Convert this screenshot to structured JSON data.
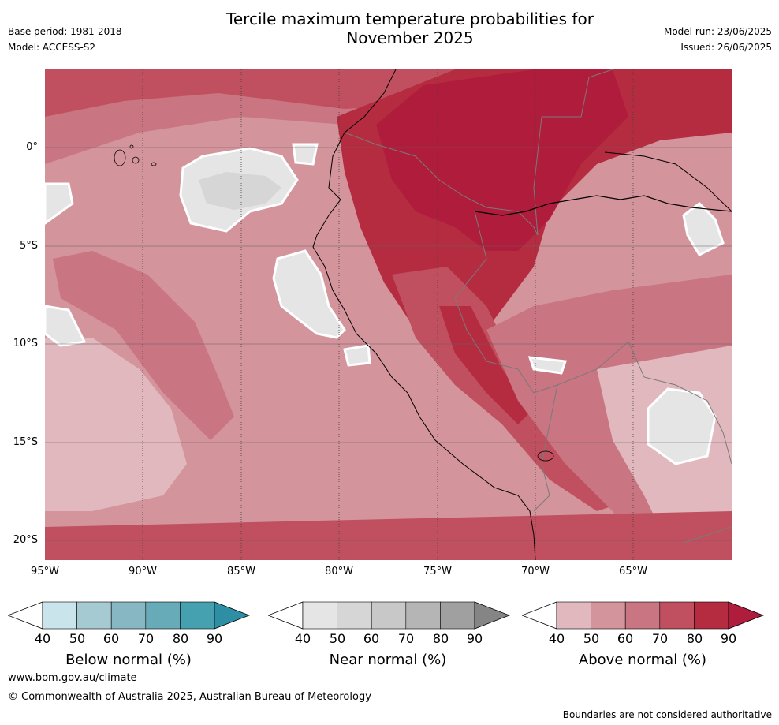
{
  "title": "Tercile maximum temperature probabilities for November 2025",
  "header": {
    "base_period": "Base period: 1981-2018",
    "model": "Model: ACCESS-S2",
    "model_run": "Model run: 23/06/2025",
    "issued": "Issued: 26/06/2025"
  },
  "map": {
    "lat_labels": [
      "0°",
      "5°S",
      "10°S",
      "15°S",
      "20°S"
    ],
    "lon_labels": [
      "95°W",
      "90°W",
      "85°W",
      "80°W",
      "75°W",
      "70°W",
      "65°W"
    ],
    "extent": {
      "lon_min": -95,
      "lon_max": -60,
      "lat_min": -21,
      "lat_max": 4
    }
  },
  "colorbars": [
    {
      "label": "Below normal (%)",
      "ticks": [
        "40",
        "50",
        "60",
        "70",
        "80",
        "90"
      ],
      "colors": [
        "#ffffff",
        "#c9e4ea",
        "#a6cad2",
        "#87b7c3",
        "#67aab8",
        "#45a0b0",
        "#2e8ea3"
      ]
    },
    {
      "label": "Near normal (%)",
      "ticks": [
        "40",
        "50",
        "60",
        "70",
        "80",
        "90"
      ],
      "colors": [
        "#ffffff",
        "#e5e5e5",
        "#d6d6d6",
        "#c8c8c8",
        "#b5b5b5",
        "#a0a0a0",
        "#858585"
      ]
    },
    {
      "label": "Above normal (%)",
      "ticks": [
        "40",
        "50",
        "60",
        "70",
        "80",
        "90"
      ],
      "colors": [
        "#ffffff",
        "#e0b8be",
        "#d4949c",
        "#c97582",
        "#c0505f",
        "#b52c41",
        "#b01c3c"
      ]
    }
  ],
  "footer": {
    "website": "www.bom.gov.au/climate",
    "copyright": "© Commonwealth of Australia 2025, Australian Bureau of Meteorology",
    "disclaimer": "Boundaries are not considered authoritative"
  }
}
